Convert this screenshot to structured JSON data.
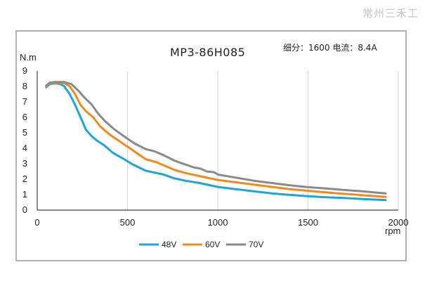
{
  "watermark": "常州三禾工",
  "chart_data": {
    "type": "line",
    "title": "MP3-86H085",
    "parameters": "细分：1600 电流：8.4A",
    "ylabel": "N.m",
    "xlabel": "rpm",
    "xlim": [
      0,
      2000
    ],
    "ylim": [
      0,
      9
    ],
    "x_ticks": [
      "0",
      "500",
      "1000",
      "1500",
      "2000"
    ],
    "y_ticks": [
      "0",
      "1",
      "2",
      "3",
      "4",
      "5",
      "6",
      "7",
      "8",
      "9"
    ],
    "grid": "vertical",
    "legend_position": "bottom",
    "series": [
      {
        "name": "48V",
        "color": "#1fa3dc",
        "points": [
          [
            50,
            7.95
          ],
          [
            70,
            8.15
          ],
          [
            100,
            8.2
          ],
          [
            130,
            8.15
          ],
          [
            150,
            8.0
          ],
          [
            180,
            7.5
          ],
          [
            210,
            6.8
          ],
          [
            240,
            6.0
          ],
          [
            270,
            5.2
          ],
          [
            300,
            4.8
          ],
          [
            330,
            4.5
          ],
          [
            370,
            4.2
          ],
          [
            420,
            3.7
          ],
          [
            480,
            3.3
          ],
          [
            530,
            2.95
          ],
          [
            600,
            2.55
          ],
          [
            660,
            2.4
          ],
          [
            700,
            2.3
          ],
          [
            760,
            2.05
          ],
          [
            820,
            1.9
          ],
          [
            900,
            1.75
          ],
          [
            1000,
            1.5
          ],
          [
            1100,
            1.35
          ],
          [
            1200,
            1.22
          ],
          [
            1300,
            1.08
          ],
          [
            1400,
            0.98
          ],
          [
            1500,
            0.9
          ],
          [
            1600,
            0.83
          ],
          [
            1700,
            0.78
          ],
          [
            1800,
            0.72
          ],
          [
            1930,
            0.65
          ]
        ]
      },
      {
        "name": "60V",
        "color": "#f08a1c",
        "points": [
          [
            50,
            8.0
          ],
          [
            70,
            8.2
          ],
          [
            100,
            8.25
          ],
          [
            150,
            8.22
          ],
          [
            180,
            8.0
          ],
          [
            210,
            7.5
          ],
          [
            240,
            6.8
          ],
          [
            270,
            6.4
          ],
          [
            310,
            6.0
          ],
          [
            350,
            5.4
          ],
          [
            400,
            4.9
          ],
          [
            450,
            4.5
          ],
          [
            500,
            4.1
          ],
          [
            550,
            3.7
          ],
          [
            600,
            3.3
          ],
          [
            660,
            3.1
          ],
          [
            700,
            2.9
          ],
          [
            760,
            2.6
          ],
          [
            820,
            2.4
          ],
          [
            900,
            2.2
          ],
          [
            1000,
            1.95
          ],
          [
            1100,
            1.8
          ],
          [
            1200,
            1.65
          ],
          [
            1300,
            1.5
          ],
          [
            1400,
            1.35
          ],
          [
            1500,
            1.25
          ],
          [
            1600,
            1.15
          ],
          [
            1700,
            1.05
          ],
          [
            1800,
            0.97
          ],
          [
            1930,
            0.85
          ]
        ]
      },
      {
        "name": "70V",
        "color": "#8a8a8a",
        "points": [
          [
            50,
            8.05
          ],
          [
            70,
            8.25
          ],
          [
            100,
            8.28
          ],
          [
            150,
            8.28
          ],
          [
            190,
            8.15
          ],
          [
            230,
            7.7
          ],
          [
            260,
            7.3
          ],
          [
            300,
            6.85
          ],
          [
            340,
            6.2
          ],
          [
            380,
            5.7
          ],
          [
            430,
            5.2
          ],
          [
            490,
            4.7
          ],
          [
            540,
            4.3
          ],
          [
            600,
            3.95
          ],
          [
            650,
            3.8
          ],
          [
            700,
            3.55
          ],
          [
            760,
            3.2
          ],
          [
            820,
            2.95
          ],
          [
            870,
            2.75
          ],
          [
            900,
            2.7
          ],
          [
            940,
            2.5
          ],
          [
            980,
            2.45
          ],
          [
            1000,
            2.3
          ],
          [
            1050,
            2.2
          ],
          [
            1100,
            2.1
          ],
          [
            1200,
            1.9
          ],
          [
            1300,
            1.75
          ],
          [
            1400,
            1.6
          ],
          [
            1500,
            1.48
          ],
          [
            1600,
            1.4
          ],
          [
            1700,
            1.3
          ],
          [
            1800,
            1.22
          ],
          [
            1930,
            1.08
          ]
        ]
      }
    ]
  }
}
